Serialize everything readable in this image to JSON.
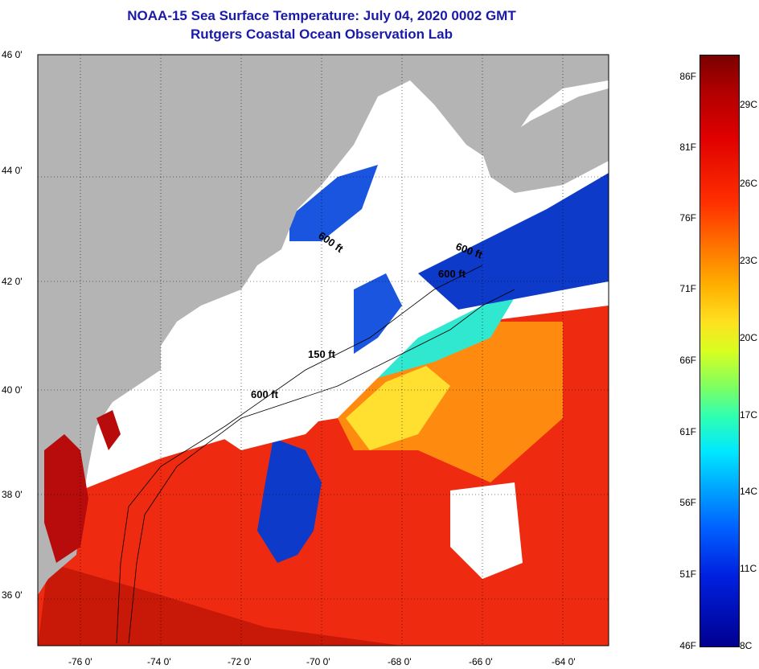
{
  "title": {
    "line1": "NOAA-15 Sea Surface Temperature:  July 04, 2020 0002 GMT",
    "line2": "Rutgers Coastal Ocean Observation Lab"
  },
  "lat_labels": [
    "46 0'",
    "44 0'",
    "42 0'",
    "40 0'",
    "38 0'",
    "36 0'"
  ],
  "lon_labels": [
    "-76 0'",
    "-74 0'",
    "-72 0'",
    "-70 0'",
    "-68 0'",
    "-66 0'",
    "-64 0'"
  ],
  "contour_labels": [
    "600 ft",
    "600 ft",
    "600 ft",
    "150 ft",
    "600 ft"
  ],
  "colorbar": {
    "f_labels": [
      "86F",
      "81F",
      "76F",
      "71F",
      "66F",
      "61F",
      "56F",
      "51F",
      "46F"
    ],
    "c_labels": [
      "29C",
      "26C",
      "23C",
      "20C",
      "17C",
      "14C",
      "11C",
      "8C"
    ]
  },
  "colors": {
    "land": "#b4b4b4",
    "cloud": "#ffffff",
    "warm": "#ee2a10",
    "cold": "#0d3ac8",
    "title": "#1a1aa8"
  }
}
